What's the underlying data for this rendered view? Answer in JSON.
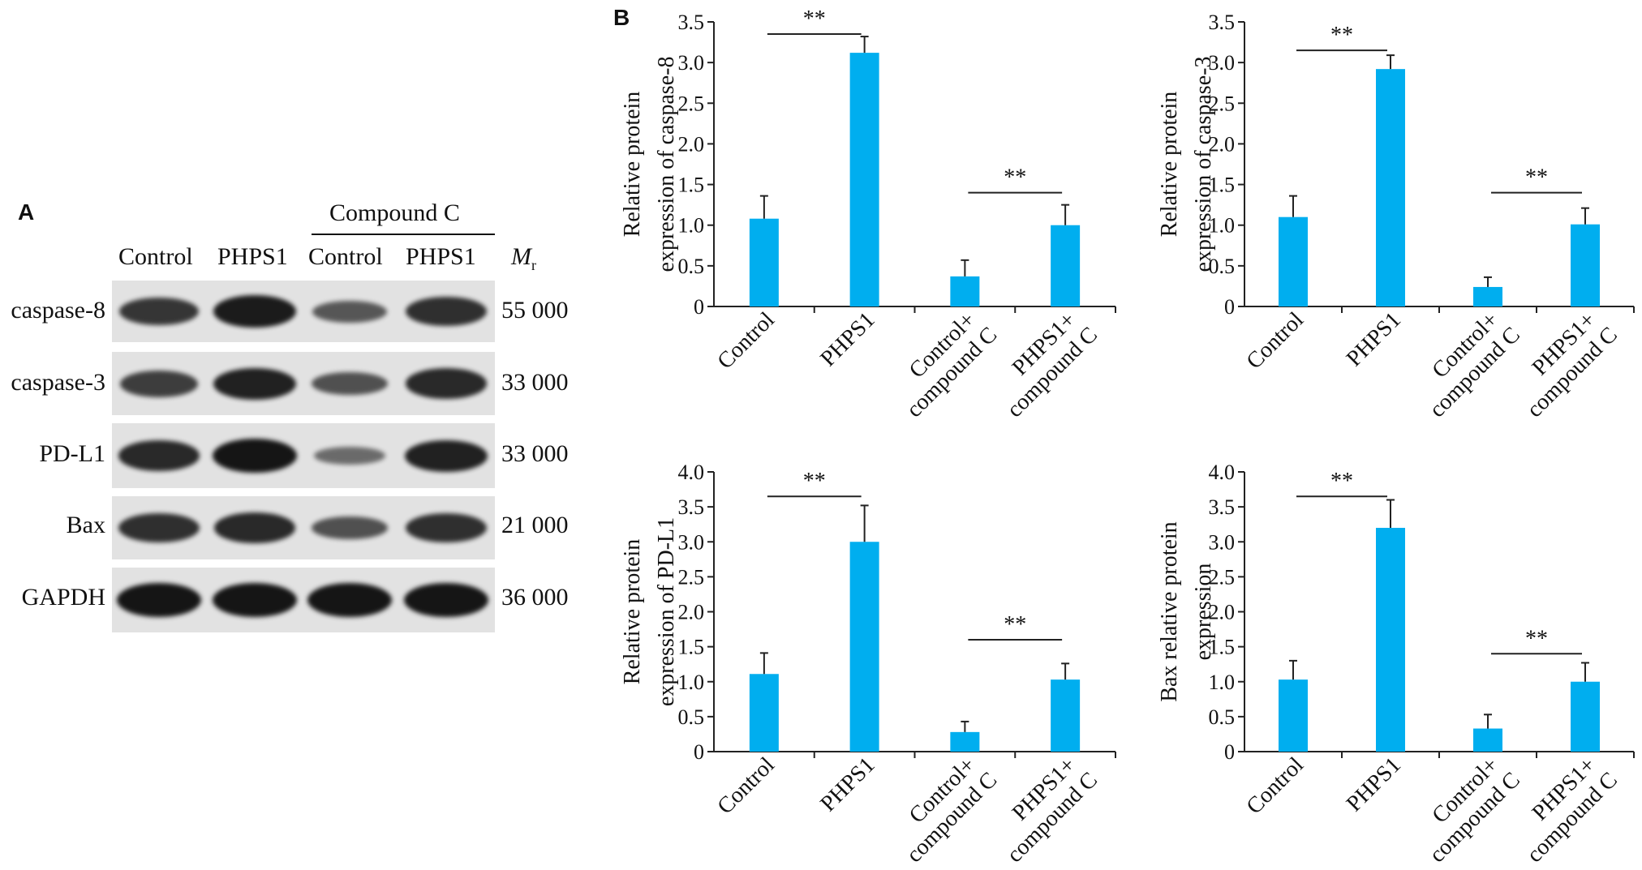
{
  "panel_a": {
    "label": "A",
    "group_header": "Compound C",
    "lanes": [
      "Control",
      "PHPS1",
      "Control",
      "PHPS1"
    ],
    "mw_header": "M",
    "mw_sub": "r",
    "rows": [
      {
        "label": "caspase-8",
        "mw": "55 000",
        "intensity": [
          0.75,
          0.95,
          0.5,
          0.8
        ]
      },
      {
        "label": "caspase-3",
        "mw": "33 000",
        "intensity": [
          0.7,
          0.9,
          0.55,
          0.85
        ]
      },
      {
        "label": "PD-L1",
        "mw": "33 000",
        "intensity": [
          0.85,
          1.0,
          0.35,
          0.9
        ]
      },
      {
        "label": "Bax",
        "mw": "21 000",
        "intensity": [
          0.8,
          0.85,
          0.55,
          0.8
        ]
      },
      {
        "label": "GAPDH",
        "mw": "36 000",
        "intensity": [
          1.0,
          1.0,
          1.0,
          1.0
        ]
      }
    ]
  },
  "panel_b": {
    "label": "B"
  },
  "colors": {
    "bar": "#00aeef",
    "axis": "#222222"
  },
  "chart_data": [
    {
      "type": "bar",
      "ylabel_lines": [
        "Relative protein",
        "expression  of caspase-8"
      ],
      "categories": [
        [
          "Control"
        ],
        [
          "PHPS1"
        ],
        [
          "Control+",
          "compound C"
        ],
        [
          "PHPS1+",
          "compound C"
        ]
      ],
      "values": [
        1.08,
        3.12,
        0.37,
        1.0
      ],
      "errors": [
        0.28,
        0.2,
        0.2,
        0.25
      ],
      "ylim": [
        0,
        3.5
      ],
      "yticks": [
        "0",
        "0.5",
        "1.0",
        "1.5",
        "2.0",
        "2.5",
        "3.0",
        "3.5"
      ],
      "significance": [
        {
          "from": 0,
          "to": 1,
          "y": 3.35,
          "label": "**"
        },
        {
          "from": 2,
          "to": 3,
          "y": 1.4,
          "label": "**"
        }
      ]
    },
    {
      "type": "bar",
      "ylabel_lines": [
        "Relative protein",
        "expression  of caspase-3"
      ],
      "categories": [
        [
          "Control"
        ],
        [
          "PHPS1"
        ],
        [
          "Control+",
          "compound C"
        ],
        [
          "PHPS1+",
          "compound C"
        ]
      ],
      "values": [
        1.1,
        2.92,
        0.24,
        1.01
      ],
      "errors": [
        0.26,
        0.17,
        0.12,
        0.2
      ],
      "ylim": [
        0,
        3.5
      ],
      "yticks": [
        "0",
        "0.5",
        "1.0",
        "1.5",
        "2.0",
        "2.5",
        "3.0",
        "3.5"
      ],
      "significance": [
        {
          "from": 0,
          "to": 1,
          "y": 3.15,
          "label": "**"
        },
        {
          "from": 2,
          "to": 3,
          "y": 1.4,
          "label": "**"
        }
      ]
    },
    {
      "type": "bar",
      "ylabel_lines": [
        "Relative protein",
        "expression  of PD-L1"
      ],
      "categories": [
        [
          "Control"
        ],
        [
          "PHPS1"
        ],
        [
          "Control+",
          "compound C"
        ],
        [
          "PHPS1+",
          "compound C"
        ]
      ],
      "values": [
        1.11,
        3.0,
        0.28,
        1.03
      ],
      "errors": [
        0.3,
        0.52,
        0.15,
        0.23
      ],
      "ylim": [
        0,
        4.0
      ],
      "yticks": [
        "0",
        "0.5",
        "1.0",
        "1.5",
        "2.0",
        "2.5",
        "3.0",
        "3.5",
        "4.0"
      ],
      "significance": [
        {
          "from": 0,
          "to": 1,
          "y": 3.65,
          "label": "**"
        },
        {
          "from": 2,
          "to": 3,
          "y": 1.6,
          "label": "**"
        }
      ]
    },
    {
      "type": "bar",
      "ylabel_lines": [
        "Bax relative protein",
        "expression"
      ],
      "categories": [
        [
          "Control"
        ],
        [
          "PHPS1"
        ],
        [
          "Control+",
          "compound C"
        ],
        [
          "PHPS1+",
          "compound C"
        ]
      ],
      "values": [
        1.03,
        3.2,
        0.33,
        1.0
      ],
      "errors": [
        0.27,
        0.4,
        0.2,
        0.27
      ],
      "ylim": [
        0,
        4.0
      ],
      "yticks": [
        "0",
        "0.5",
        "1.0",
        "1.5",
        "2.0",
        "2.5",
        "3.0",
        "3.5",
        "4.0"
      ],
      "significance": [
        {
          "from": 0,
          "to": 1,
          "y": 3.65,
          "label": "**"
        },
        {
          "from": 2,
          "to": 3,
          "y": 1.4,
          "label": "**"
        }
      ]
    }
  ]
}
